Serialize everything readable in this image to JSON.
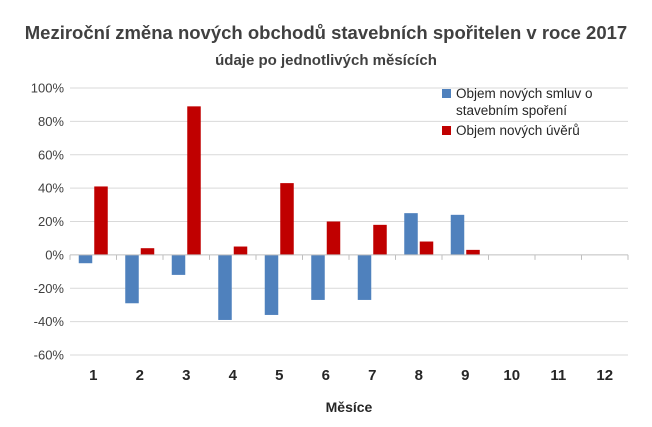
{
  "chart_data": {
    "type": "bar",
    "title": "Meziroční změna nových obchodů stavebních spořitelen v roce 2017",
    "subtitle": "údaje po jednotlivých měsících",
    "xlabel": "Měsíce",
    "ylabel": "",
    "categories": [
      "1",
      "2",
      "3",
      "4",
      "5",
      "6",
      "7",
      "8",
      "9",
      "10",
      "11",
      "12"
    ],
    "ylim": [
      -60,
      100
    ],
    "yticks": [
      -60,
      -40,
      -20,
      0,
      20,
      40,
      60,
      80,
      100
    ],
    "ytick_labels": [
      "-60%",
      "-40%",
      "-20%",
      "0%",
      "20%",
      "40%",
      "60%",
      "80%",
      "100%"
    ],
    "grid": true,
    "legend_position": "top-right",
    "series": [
      {
        "name": "Objem nových smluv o stavebním spoření",
        "legend_lines": [
          "Objem nových smluv o",
          "stavebním spoření"
        ],
        "color": "#4f81bd",
        "values": [
          -5,
          -29,
          -12,
          -39,
          -36,
          -27,
          -27,
          25,
          24,
          null,
          null,
          null
        ]
      },
      {
        "name": "Objem nových úvěrů",
        "legend_lines": [
          "Objem nových úvěrů"
        ],
        "color": "#c00000",
        "values": [
          41,
          4,
          89,
          5,
          43,
          20,
          18,
          8,
          3,
          null,
          null,
          null
        ]
      }
    ]
  }
}
